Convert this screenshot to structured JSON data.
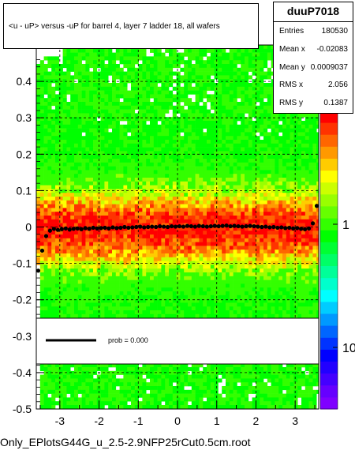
{
  "title": "<u - uP>       versus  -uP for barrel 4, layer 7 ladder 18, all  wafers",
  "stats": {
    "name": "duuP7018",
    "rows": [
      {
        "label": "Entries",
        "value": "180530"
      },
      {
        "label": "Mean x",
        "value": "-0.02083"
      },
      {
        "label": "Mean y",
        "value": "0.0009037"
      },
      {
        "label": "RMS x",
        "value": "2.056"
      },
      {
        "label": "RMS y",
        "value": "0.1387"
      }
    ]
  },
  "legend": {
    "label": "prob = 0.000",
    "line_color": "#000000"
  },
  "footer": "Only_EPlotsG44G_u_2.5-2.9NFP25rCut0.5cm.root",
  "colors": {
    "profile": "#000000",
    "gridline": "#000000",
    "palette_low": "#7f00ff",
    "palette_high": "#ff0000"
  },
  "chart_data": {
    "type": "heatmap",
    "x_ticks": [
      "-3",
      "-2",
      "-1",
      "0",
      "1",
      "2",
      "3"
    ],
    "y_ticks": [
      "-0.5",
      "-0.4",
      "-0.3",
      "-0.2",
      "-0.1",
      "0",
      "0.1",
      "0.2",
      "0.3",
      "0.4"
    ],
    "xlim": [
      -3.6,
      3.6
    ],
    "ylim": [
      -0.5,
      0.5
    ],
    "z_ticks": [
      "10",
      "1"
    ],
    "z_scale": "log",
    "grid": true,
    "profile": {
      "x": [
        -3.55,
        -3.45,
        -3.35,
        -3.25,
        -3.15,
        -3.05,
        -2.95,
        -2.85,
        -2.75,
        -2.65,
        -2.55,
        -2.45,
        -2.35,
        -2.25,
        -2.15,
        -2.05,
        -1.95,
        -1.85,
        -1.75,
        -1.65,
        -1.55,
        -1.45,
        -1.35,
        -1.25,
        -1.15,
        -1.05,
        -0.95,
        -0.85,
        -0.75,
        -0.65,
        -0.55,
        -0.45,
        -0.35,
        -0.25,
        -0.15,
        -0.05,
        0.05,
        0.15,
        0.25,
        0.35,
        0.45,
        0.55,
        0.65,
        0.75,
        0.85,
        0.95,
        1.05,
        1.15,
        1.25,
        1.35,
        1.45,
        1.55,
        1.65,
        1.75,
        1.85,
        1.95,
        2.05,
        2.15,
        2.25,
        2.35,
        2.45,
        2.55,
        2.65,
        2.75,
        2.85,
        2.95,
        3.05,
        3.15,
        3.25,
        3.35,
        3.45,
        3.55
      ],
      "y": [
        -0.12,
        -0.065,
        -0.025,
        -0.01,
        -0.005,
        -0.008,
        -0.006,
        -0.004,
        -0.007,
        -0.005,
        -0.004,
        -0.006,
        -0.003,
        -0.005,
        -0.002,
        -0.004,
        -0.003,
        -0.002,
        -0.004,
        -0.001,
        -0.003,
        -0.002,
        0.0,
        -0.002,
        -0.001,
        0.0,
        0.001,
        -0.001,
        0.0,
        0.001,
        0.0,
        0.002,
        0.001,
        0.0,
        0.002,
        0.001,
        0.002,
        0.001,
        0.003,
        0.002,
        0.001,
        0.003,
        0.002,
        0.001,
        0.002,
        0.003,
        0.002,
        0.003,
        0.004,
        0.002,
        0.003,
        0.002,
        0.001,
        0.002,
        0.003,
        0.002,
        0.001,
        0.0,
        0.001,
        -0.001,
        0.0,
        -0.002,
        -0.001,
        -0.003,
        -0.002,
        -0.004,
        -0.003,
        -0.005,
        -0.006,
        -0.004,
        0.01,
        0.058
      ]
    }
  }
}
